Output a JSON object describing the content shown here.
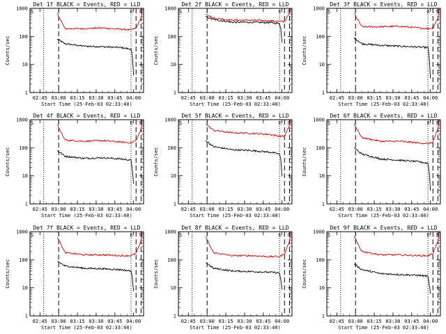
{
  "chart_data": [
    {
      "type": "line",
      "title": "Det 1f BLACK = Events, RED = LLD",
      "xlabel": "Start Time (25-Feb-03 02:33:40)",
      "ylabel": "Counts/sec",
      "yscale": "log",
      "ylim": [
        1,
        1000
      ],
      "xlim": [
        "02:37",
        "04:08"
      ],
      "x_ticks": [
        "02:45",
        "03:00",
        "03:15",
        "03:30",
        "03:45",
        "04:00"
      ],
      "y_ticks": [
        "1",
        "10",
        "100",
        "1000"
      ],
      "markers": {
        "S_left": "02:37",
        "E": "04:00",
        "S_right": "04:06"
      },
      "dotted_lines": [
        "02:48",
        "03:58"
      ],
      "dashed_lines": [
        "03:00",
        "04:02",
        "04:06"
      ],
      "series": [
        {
          "name": "Events",
          "color": "#000000",
          "x": [
            "02:59",
            "03:05",
            "03:20",
            "03:35",
            "03:50",
            "03:58",
            "03:59",
            "04:00"
          ],
          "values": [
            80,
            55,
            45,
            43,
            40,
            35,
            20,
            4
          ]
        },
        {
          "name": "LLD",
          "color": "#d00000",
          "x": [
            "02:59",
            "03:05",
            "03:20",
            "03:35",
            "03:50",
            "03:58",
            "04:02",
            "04:06",
            "04:07"
          ],
          "values": [
            650,
            190,
            190,
            200,
            180,
            170,
            200,
            450,
            1000
          ]
        }
      ]
    },
    {
      "type": "line",
      "title": "Det 2f BLACK = Events, RED = LLD",
      "xlabel": "Start Time (25-Feb-03 02:33:40)",
      "ylabel": "Counts/sec",
      "yscale": "log",
      "ylim": [
        1,
        1000
      ],
      "xlim": [
        "02:37",
        "04:08"
      ],
      "x_ticks": [
        "02:45",
        "03:00",
        "03:15",
        "03:30",
        "03:45",
        "04:00"
      ],
      "y_ticks": [
        "1",
        "10",
        "100",
        "1000"
      ],
      "markers": {
        "S_left": "02:37",
        "E": "04:00",
        "S_right": "04:06"
      },
      "dotted_lines": [
        "02:48",
        "03:58"
      ],
      "dashed_lines": [
        "03:00",
        "04:02",
        "04:06"
      ],
      "series": [
        {
          "name": "Events",
          "color": "#000000",
          "x": [
            "02:59",
            "03:05",
            "03:20",
            "03:35",
            "03:50",
            "03:58",
            "03:59",
            "04:00"
          ],
          "values": [
            500,
            400,
            320,
            320,
            310,
            290,
            200,
            60
          ]
        },
        {
          "name": "LLD",
          "color": "#d00000",
          "x": [
            "02:59",
            "03:05",
            "03:20",
            "03:35",
            "03:50",
            "03:58",
            "04:02",
            "04:06",
            "04:07"
          ],
          "values": [
            650,
            450,
            380,
            380,
            360,
            340,
            340,
            650,
            1000
          ]
        }
      ]
    },
    {
      "type": "line",
      "title": "Det 3f BLACK = Events, RED = LLD",
      "xlabel": "Start Time (25-Feb-03 02:33:40)",
      "ylabel": "Counts/sec",
      "yscale": "log",
      "ylim": [
        1,
        1000
      ],
      "xlim": [
        "02:37",
        "04:08"
      ],
      "x_ticks": [
        "02:45",
        "03:00",
        "03:15",
        "03:30",
        "03:45",
        "04:00"
      ],
      "y_ticks": [
        "1",
        "10",
        "100",
        "1000"
      ],
      "markers": {
        "S_left": "02:37",
        "E": "04:00",
        "S_right": "04:06"
      },
      "dotted_lines": [
        "02:48",
        "03:58"
      ],
      "dashed_lines": [
        "03:00",
        "04:02",
        "04:06"
      ],
      "series": [
        {
          "name": "Events",
          "color": "#000000",
          "x": [
            "02:59",
            "03:05",
            "03:20",
            "03:35",
            "03:50",
            "03:58",
            "03:59",
            "04:00"
          ],
          "values": [
            90,
            55,
            48,
            45,
            42,
            40,
            20,
            3
          ]
        },
        {
          "name": "LLD",
          "color": "#d00000",
          "x": [
            "02:59",
            "03:05",
            "03:20",
            "03:35",
            "03:50",
            "03:58",
            "04:02",
            "04:06",
            "04:07"
          ],
          "values": [
            650,
            220,
            220,
            230,
            200,
            190,
            200,
            450,
            1000
          ]
        }
      ]
    },
    {
      "type": "line",
      "title": "Det 4f BLACK = Events, RED = LLD",
      "xlabel": "Start Time (25-Feb-03 02:33:40)",
      "ylabel": "Counts/sec",
      "yscale": "log",
      "ylim": [
        1,
        1000
      ],
      "xlim": [
        "02:37",
        "04:08"
      ],
      "x_ticks": [
        "02:45",
        "03:00",
        "03:15",
        "03:30",
        "03:45",
        "04:00"
      ],
      "y_ticks": [
        "1",
        "10",
        "100",
        "1000"
      ],
      "markers": {
        "S_left": "02:37",
        "E": "04:00",
        "S_right": "04:06"
      },
      "dotted_lines": [
        "02:48",
        "03:58"
      ],
      "dashed_lines": [
        "03:00",
        "04:02",
        "04:06"
      ],
      "series": [
        {
          "name": "Events",
          "color": "#000000",
          "x": [
            "02:59",
            "03:05",
            "03:20",
            "03:35",
            "03:50",
            "03:58",
            "03:59",
            "04:00"
          ],
          "values": [
            80,
            50,
            42,
            44,
            40,
            36,
            18,
            5
          ]
        },
        {
          "name": "LLD",
          "color": "#d00000",
          "x": [
            "02:59",
            "03:05",
            "03:20",
            "03:35",
            "03:50",
            "03:58",
            "04:02",
            "04:06",
            "04:07"
          ],
          "values": [
            650,
            190,
            170,
            180,
            160,
            150,
            180,
            450,
            1000
          ]
        }
      ]
    },
    {
      "type": "line",
      "title": "Det 5f BLACK = Events, RED = LLD",
      "xlabel": "Start Time (25-Feb-03 02:33:40)",
      "ylabel": "Counts/sec",
      "yscale": "log",
      "ylim": [
        1,
        1000
      ],
      "xlim": [
        "02:37",
        "04:08"
      ],
      "x_ticks": [
        "02:45",
        "03:00",
        "03:15",
        "03:30",
        "03:45",
        "04:00"
      ],
      "y_ticks": [
        "1",
        "10",
        "100",
        "1000"
      ],
      "markers": {
        "S_left": "02:37",
        "E": "04:00",
        "S_right": "04:06"
      },
      "dotted_lines": [
        "02:48",
        "03:58"
      ],
      "dashed_lines": [
        "03:00",
        "04:02",
        "04:06"
      ],
      "series": [
        {
          "name": "Events",
          "color": "#000000",
          "x": [
            "02:59",
            "03:05",
            "03:20",
            "03:35",
            "03:50",
            "03:58",
            "03:59",
            "04:00"
          ],
          "values": [
            180,
            110,
            85,
            80,
            70,
            60,
            40,
            10
          ]
        },
        {
          "name": "LLD",
          "color": "#d00000",
          "x": [
            "02:59",
            "03:05",
            "03:20",
            "03:35",
            "03:50",
            "03:58",
            "04:02",
            "04:06",
            "04:07"
          ],
          "values": [
            700,
            420,
            340,
            330,
            300,
            260,
            260,
            600,
            1000
          ]
        }
      ]
    },
    {
      "type": "line",
      "title": "Det 6f BLACK = Events, RED = LLD",
      "xlabel": "Start Time (25-Feb-03 02:33:40)",
      "ylabel": "Counts/sec",
      "yscale": "log",
      "ylim": [
        1,
        1000
      ],
      "xlim": [
        "02:37",
        "04:08"
      ],
      "x_ticks": [
        "02:45",
        "03:00",
        "03:15",
        "03:30",
        "03:45",
        "04:00"
      ],
      "y_ticks": [
        "1",
        "10",
        "100",
        "1000"
      ],
      "markers": {
        "S_left": "02:37",
        "E": "04:00",
        "S_right": "04:06"
      },
      "dotted_lines": [
        "02:48",
        "03:58"
      ],
      "dashed_lines": [
        "03:00",
        "04:02",
        "04:06"
      ],
      "series": [
        {
          "name": "Events",
          "color": "#000000",
          "x": [
            "02:59",
            "03:05",
            "03:20",
            "03:35",
            "03:50",
            "03:58",
            "03:59",
            "04:00"
          ],
          "values": [
            100,
            60,
            40,
            36,
            32,
            28,
            15,
            3
          ]
        },
        {
          "name": "LLD",
          "color": "#d00000",
          "x": [
            "02:59",
            "03:05",
            "03:20",
            "03:35",
            "03:50",
            "03:58",
            "04:02",
            "04:06",
            "04:07"
          ],
          "values": [
            700,
            230,
            170,
            170,
            150,
            140,
            160,
            450,
            1000
          ]
        }
      ]
    },
    {
      "type": "line",
      "title": "Det 7f BLACK = Events, RED = LLD",
      "xlabel": "Start Time (25-Feb-03 02:33:40)",
      "ylabel": "Counts/sec",
      "yscale": "log",
      "ylim": [
        1,
        1000
      ],
      "xlim": [
        "02:37",
        "04:08"
      ],
      "x_ticks": [
        "02:45",
        "03:00",
        "03:15",
        "03:30",
        "03:45",
        "04:00"
      ],
      "y_ticks": [
        "1",
        "10",
        "100",
        "1000"
      ],
      "markers": {
        "S_left": "02:37",
        "E": "04:00",
        "S_right": "04:06"
      },
      "dotted_lines": [
        "02:48",
        "03:58"
      ],
      "dashed_lines": [
        "03:00",
        "04:02",
        "04:06"
      ],
      "series": [
        {
          "name": "Events",
          "color": "#000000",
          "x": [
            "02:59",
            "03:05",
            "03:20",
            "03:35",
            "03:50",
            "03:58",
            "03:59",
            "04:00"
          ],
          "values": [
            90,
            60,
            50,
            48,
            44,
            40,
            22,
            8
          ]
        },
        {
          "name": "LLD",
          "color": "#d00000",
          "x": [
            "02:59",
            "03:05",
            "03:20",
            "03:35",
            "03:50",
            "03:58",
            "04:02",
            "04:06",
            "04:07"
          ],
          "values": [
            650,
            180,
            150,
            150,
            140,
            140,
            170,
            450,
            1000
          ]
        }
      ]
    },
    {
      "type": "line",
      "title": "Det 8f BLACK = Events, RED = LLD",
      "xlabel": "Start Time (25-Feb-03 02:33:40)",
      "ylabel": "Counts/sec",
      "yscale": "log",
      "ylim": [
        1,
        1000
      ],
      "xlim": [
        "02:37",
        "04:08"
      ],
      "x_ticks": [
        "02:45",
        "03:00",
        "03:15",
        "03:30",
        "03:45",
        "04:00"
      ],
      "y_ticks": [
        "1",
        "10",
        "100",
        "1000"
      ],
      "markers": {
        "S_left": "02:37",
        "E": "04:00",
        "S_right": "04:06"
      },
      "dotted_lines": [
        "02:48",
        "03:58"
      ],
      "dashed_lines": [
        "03:00",
        "04:02",
        "04:06"
      ],
      "series": [
        {
          "name": "Events",
          "color": "#000000",
          "x": [
            "02:59",
            "03:05",
            "03:20",
            "03:35",
            "03:50",
            "03:58",
            "03:59",
            "04:00"
          ],
          "values": [
            80,
            50,
            40,
            38,
            36,
            34,
            20,
            8
          ]
        },
        {
          "name": "LLD",
          "color": "#d00000",
          "x": [
            "02:59",
            "03:05",
            "03:20",
            "03:35",
            "03:50",
            "03:58",
            "04:02",
            "04:06",
            "04:07"
          ],
          "values": [
            650,
            180,
            140,
            140,
            130,
            130,
            160,
            450,
            1000
          ]
        }
      ]
    },
    {
      "type": "line",
      "title": "Det 9f BLACK = Events, RED = LLD",
      "xlabel": "Start Time (25-Feb-03 02:33:40)",
      "ylabel": "Counts/sec",
      "yscale": "log",
      "ylim": [
        1,
        1000
      ],
      "xlim": [
        "02:37",
        "04:08"
      ],
      "x_ticks": [
        "02:45",
        "03:00",
        "03:15",
        "03:30",
        "03:45",
        "04:00"
      ],
      "y_ticks": [
        "1",
        "10",
        "100",
        "1000"
      ],
      "markers": {
        "S_left": "02:37",
        "E": "04:00",
        "S_right": "04:06"
      },
      "dotted_lines": [
        "02:48",
        "03:58"
      ],
      "dashed_lines": [
        "03:00",
        "04:02",
        "04:06"
      ],
      "series": [
        {
          "name": "Events",
          "color": "#000000",
          "x": [
            "02:59",
            "03:05",
            "03:20",
            "03:35",
            "03:50",
            "03:58",
            "03:59",
            "04:00"
          ],
          "values": [
            70,
            45,
            32,
            30,
            28,
            26,
            14,
            6
          ]
        },
        {
          "name": "LLD",
          "color": "#d00000",
          "x": [
            "02:59",
            "03:05",
            "03:20",
            "03:35",
            "03:50",
            "03:58",
            "04:02",
            "04:06",
            "04:07"
          ],
          "values": [
            650,
            200,
            150,
            150,
            140,
            140,
            170,
            450,
            1000
          ]
        }
      ]
    }
  ]
}
